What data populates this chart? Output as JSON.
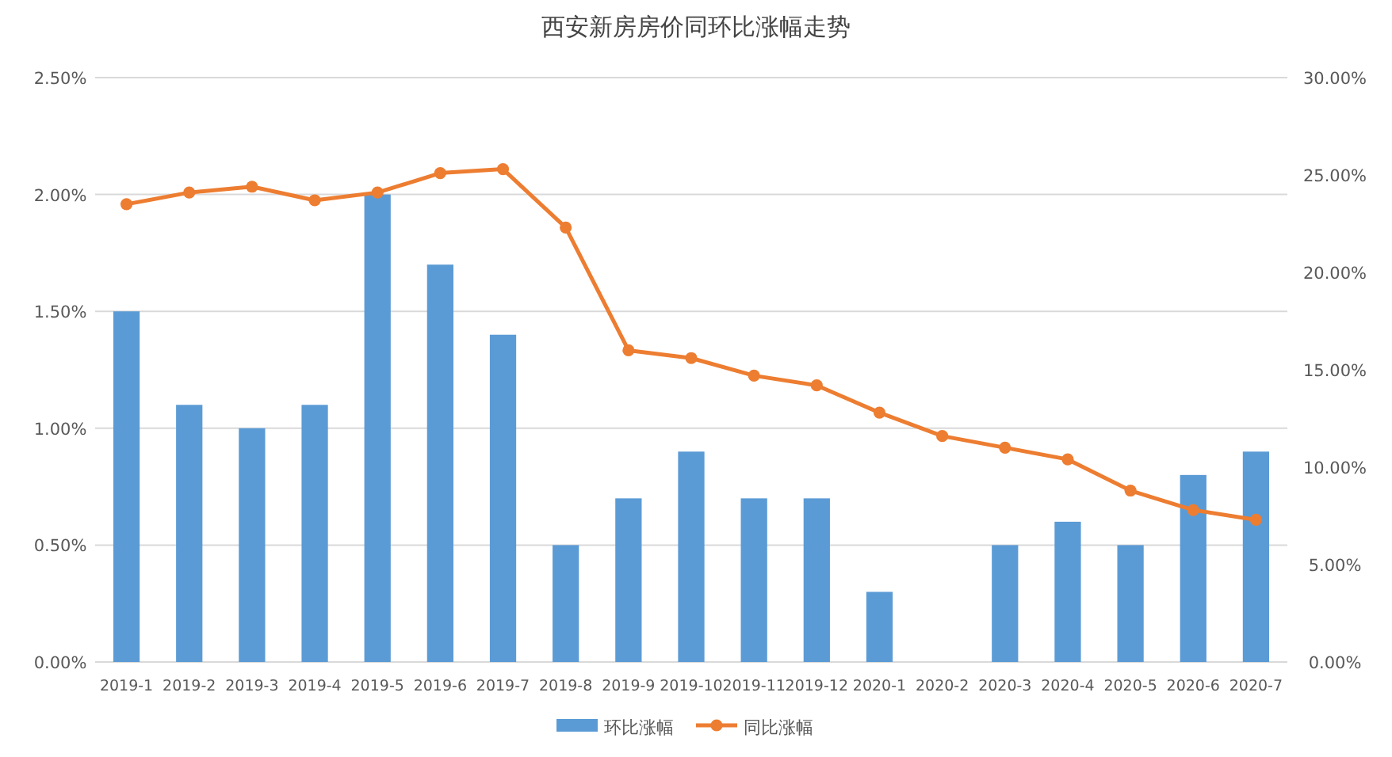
{
  "chart_data": {
    "type": "bar",
    "title": "西安新房房价同环比涨幅走势",
    "categories": [
      "2019-1",
      "2019-2",
      "2019-3",
      "2019-4",
      "2019-5",
      "2019-6",
      "2019-7",
      "2019-8",
      "2019-9",
      "2019-10",
      "2019-11",
      "2019-12",
      "2020-1",
      "2020-2",
      "2020-3",
      "2020-4",
      "2020-5",
      "2020-6",
      "2020-7"
    ],
    "series": [
      {
        "name": "环比涨幅",
        "color": "#5b9bd5",
        "values": [
          1.5,
          1.1,
          1.0,
          1.1,
          2.0,
          1.7,
          1.4,
          0.5,
          0.7,
          0.9,
          0.7,
          0.7,
          0.3,
          null,
          0.5,
          0.6,
          0.5,
          0.8,
          0.9
        ]
      },
      {
        "name": "同比涨幅",
        "type": "line",
        "axis": "y2",
        "color": "#ed7d31",
        "marker": "circle",
        "values": [
          23.5,
          24.1,
          24.4,
          23.7,
          24.1,
          25.1,
          25.3,
          22.3,
          16.0,
          15.6,
          14.7,
          14.2,
          12.8,
          11.6,
          11.0,
          10.4,
          8.8,
          7.8,
          7.3
        ]
      }
    ],
    "ylim": [
      0,
      2.5
    ],
    "yticks": [
      {
        "value": 0,
        "label": "0.00%"
      },
      {
        "value": 0.5,
        "label": "0.50%"
      },
      {
        "value": 1,
        "label": "1.00%"
      },
      {
        "value": 1.5,
        "label": "1.50%"
      },
      {
        "value": 2,
        "label": "2.00%"
      },
      {
        "value": 2.5,
        "label": "2.50%"
      }
    ],
    "y2lim": [
      0,
      30
    ],
    "y2ticks": [
      {
        "value": 0,
        "label": "0.00%"
      },
      {
        "value": 5,
        "label": "5.00%"
      },
      {
        "value": 10,
        "label": "10.00%"
      },
      {
        "value": 15,
        "label": "15.00%"
      },
      {
        "value": 20,
        "label": "20.00%"
      },
      {
        "value": 25,
        "label": "25.00%"
      },
      {
        "value": 30,
        "label": "30.00%"
      }
    ],
    "grid": "y",
    "legend": "bottom"
  }
}
